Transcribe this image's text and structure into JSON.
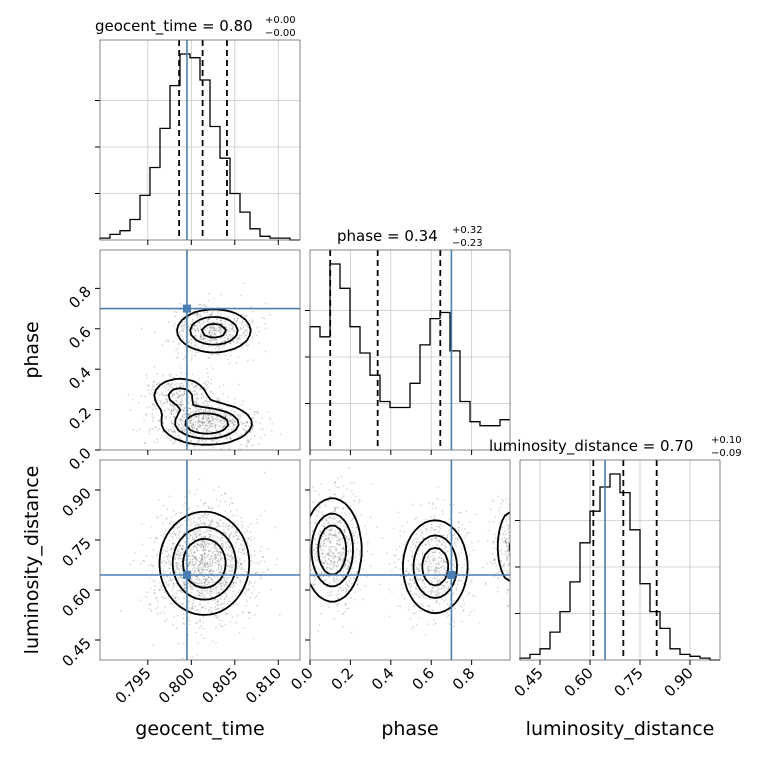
{
  "chart_data": {
    "type": "corner",
    "truth_color": "#4a7fb5",
    "parameters": [
      {
        "name": "geocent_time",
        "range": [
          0.7895,
          0.8125
        ],
        "ticks": [
          0.795,
          0.8,
          0.805,
          0.81
        ],
        "tick_labels": [
          "0.795",
          "0.800",
          "0.805",
          "0.810"
        ],
        "truth": 0.7995,
        "median": 0.8,
        "err_plus": 0.0,
        "err_minus": 0.0,
        "title_main": "geocent_time = 0.80",
        "title_sup": "+0.00",
        "title_sub": "−0.00",
        "quantiles": [
          0.7986,
          0.8013,
          0.8041
        ]
      },
      {
        "name": "phase",
        "range": [
          0.0,
          0.99
        ],
        "ticks": [
          0.0,
          0.2,
          0.4,
          0.6,
          0.8
        ],
        "tick_labels": [
          "0.0",
          "0.2",
          "0.4",
          "0.6",
          "0.8"
        ],
        "truth": 0.7,
        "median": 0.34,
        "err_plus": 0.32,
        "err_minus": 0.23,
        "title_main": "phase = 0.34",
        "title_sup": "+0.32",
        "title_sub": "−0.23",
        "quantiles": [
          0.1,
          0.335,
          0.645
        ]
      },
      {
        "name": "luminosity_distance",
        "range": [
          0.39,
          0.99
        ],
        "ticks": [
          0.45,
          0.6,
          0.75,
          0.9
        ],
        "tick_labels": [
          "0.45",
          "0.60",
          "0.75",
          "0.90"
        ],
        "truth": 0.645,
        "median": 0.7,
        "err_plus": 0.1,
        "err_minus": 0.09,
        "title_main": "luminosity_distance = 0.70",
        "title_sup": "+0.10",
        "title_sub": "−0.09",
        "quantiles": [
          0.61,
          0.7,
          0.8
        ]
      }
    ],
    "histograms": [
      {
        "param": "geocent_time",
        "bin_start": 0.7895,
        "bin_width": 0.00115,
        "counts": [
          1,
          3,
          5,
          11,
          24,
          39,
          60,
          83,
          100,
          98,
          86,
          61,
          44,
          25,
          15,
          6,
          2,
          1,
          1,
          0
        ]
      },
      {
        "param": "phase",
        "bin_start": 0.0,
        "bin_width": 0.0495,
        "counts": [
          61,
          56,
          92,
          80,
          61,
          48,
          37,
          24,
          21,
          21,
          33,
          52,
          65,
          68,
          49,
          24,
          14,
          12,
          12,
          15
        ]
      },
      {
        "param": "luminosity_distance",
        "bin_start": 0.39,
        "bin_width": 0.03,
        "counts": [
          1,
          3,
          6,
          15,
          26,
          42,
          63,
          80,
          93,
          100,
          90,
          70,
          41,
          26,
          17,
          6,
          3,
          2,
          1,
          0
        ]
      }
    ],
    "modes_2d": [
      {
        "x": "geocent_time",
        "y": "phase",
        "blobs": [
          {
            "cx": 0.8026,
            "cy": 0.59,
            "sx": 0.0022,
            "sy": 0.055,
            "w": 0.75
          },
          {
            "cx": 0.8018,
            "cy": 0.13,
            "sx": 0.0025,
            "sy": 0.05,
            "w": 1.0
          },
          {
            "cx": 0.7987,
            "cy": 0.27,
            "sx": 0.0018,
            "sy": 0.05,
            "w": 0.45
          }
        ]
      },
      {
        "x": "geocent_time",
        "y": "luminosity_distance",
        "blobs": [
          {
            "cx": 0.8015,
            "cy": 0.68,
            "sx": 0.0025,
            "sy": 0.075,
            "w": 1.0
          }
        ]
      },
      {
        "x": "phase",
        "y": "luminosity_distance",
        "blobs": [
          {
            "cx": 0.11,
            "cy": 0.72,
            "sx": 0.07,
            "sy": 0.075,
            "w": 1.0
          },
          {
            "cx": 0.62,
            "cy": 0.67,
            "sx": 0.08,
            "sy": 0.07,
            "w": 0.85
          },
          {
            "cx": 0.99,
            "cy": 0.73,
            "sx": 0.04,
            "sy": 0.07,
            "w": 0.35
          }
        ]
      }
    ],
    "grid": true
  }
}
